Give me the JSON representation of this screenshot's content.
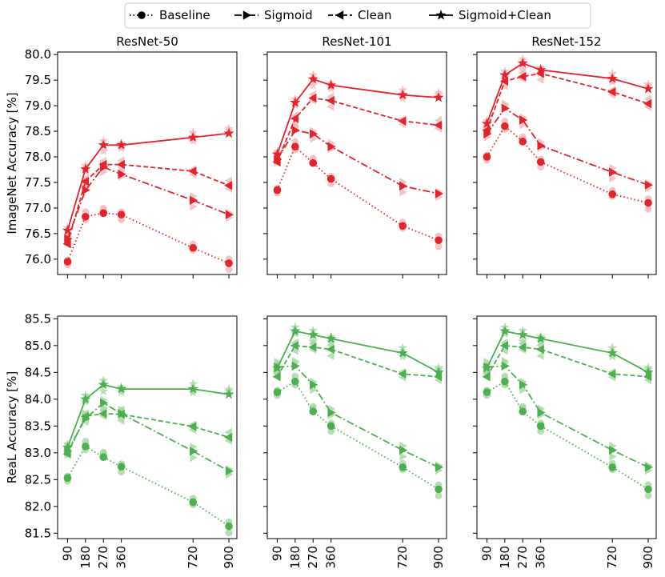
{
  "legend": {
    "placement": "top-center",
    "entries": [
      "Baseline",
      "Sigmoid",
      "Clean",
      "Sigmoid+Clean"
    ]
  },
  "colors": {
    "imagenet": "#e3242b",
    "imagenet_faint": "#f5b8bd",
    "real": "#4caf50",
    "real_faint": "#a9d7a6",
    "legend": "#000000"
  },
  "chart_data": [
    {
      "type": "line",
      "title": "ResNet-50",
      "ylabel": "ImageNet Accuracy [%]",
      "x": [
        90,
        180,
        270,
        360,
        720,
        900
      ],
      "ylim": [
        75.7,
        80.05
      ],
      "yticks": [
        "76.0",
        "76.5",
        "77.0",
        "77.5",
        "78.0",
        "78.5",
        "79.0",
        "79.5",
        "80.0"
      ],
      "series": [
        {
          "name": "Baseline",
          "values": [
            75.95,
            76.83,
            76.9,
            76.87,
            76.22,
            75.92
          ]
        },
        {
          "name": "Sigmoid",
          "values": [
            76.4,
            77.35,
            77.8,
            77.66,
            77.15,
            76.87
          ]
        },
        {
          "name": "Clean",
          "values": [
            76.3,
            77.52,
            77.85,
            77.85,
            77.72,
            77.44
          ]
        },
        {
          "name": "Sigmoid+Clean",
          "values": [
            76.56,
            77.76,
            78.23,
            78.23,
            78.38,
            78.46
          ]
        }
      ]
    },
    {
      "type": "line",
      "title": "ResNet-101",
      "x": [
        90,
        180,
        270,
        360,
        720,
        900
      ],
      "ylim": [
        75.7,
        80.05
      ],
      "series": [
        {
          "name": "Baseline",
          "values": [
            77.35,
            78.2,
            77.88,
            77.57,
            76.65,
            76.37
          ]
        },
        {
          "name": "Sigmoid",
          "values": [
            77.95,
            78.52,
            78.45,
            78.2,
            77.43,
            77.28
          ]
        },
        {
          "name": "Clean",
          "values": [
            77.9,
            78.75,
            79.15,
            79.1,
            78.7,
            78.62
          ]
        },
        {
          "name": "Sigmoid+Clean",
          "values": [
            78.05,
            79.06,
            79.52,
            79.4,
            79.21,
            79.16
          ]
        }
      ]
    },
    {
      "type": "line",
      "title": "ResNet-152",
      "x": [
        90,
        180,
        270,
        360,
        720,
        900
      ],
      "ylim": [
        75.7,
        80.05
      ],
      "series": [
        {
          "name": "Baseline",
          "values": [
            78.0,
            78.6,
            78.3,
            77.9,
            77.27,
            77.1
          ]
        },
        {
          "name": "Sigmoid",
          "values": [
            78.45,
            78.95,
            78.72,
            78.22,
            77.7,
            77.45
          ]
        },
        {
          "name": "Clean",
          "values": [
            78.52,
            79.48,
            79.57,
            79.63,
            79.27,
            79.04
          ]
        },
        {
          "name": "Sigmoid+Clean",
          "values": [
            78.65,
            79.6,
            79.83,
            79.7,
            79.53,
            79.33
          ]
        }
      ]
    },
    {
      "type": "line",
      "title": "",
      "ylabel": "ReaL Accuracy [%]",
      "x": [
        90,
        180,
        270,
        360,
        720,
        900
      ],
      "xticks": [
        "90",
        "180",
        "270",
        "360",
        "720",
        "900"
      ],
      "ylim": [
        81.4,
        85.55
      ],
      "yticks": [
        "81.5",
        "82.0",
        "82.5",
        "83.0",
        "83.5",
        "84.0",
        "84.5",
        "85.0",
        "85.5"
      ],
      "series": [
        {
          "name": "Baseline",
          "values": [
            82.53,
            83.12,
            82.92,
            82.74,
            82.08,
            81.63
          ]
        },
        {
          "name": "Sigmoid",
          "values": [
            83.03,
            83.64,
            83.93,
            83.73,
            83.03,
            82.66
          ]
        },
        {
          "name": "Clean",
          "values": [
            82.98,
            83.68,
            83.73,
            83.72,
            83.49,
            83.29
          ]
        },
        {
          "name": "Sigmoid+Clean",
          "values": [
            83.1,
            84.0,
            84.27,
            84.19,
            84.19,
            84.09
          ]
        }
      ]
    },
    {
      "type": "line",
      "title": "",
      "x": [
        90,
        180,
        270,
        360,
        720,
        900
      ],
      "xticks": [
        "90",
        "180",
        "270",
        "360",
        "720",
        "900"
      ],
      "ylim": [
        81.4,
        85.55
      ],
      "series": [
        {
          "name": "Baseline",
          "values": [
            84.13,
            84.33,
            83.77,
            83.5,
            82.73,
            82.32
          ]
        },
        {
          "name": "Sigmoid",
          "values": [
            84.6,
            84.62,
            84.27,
            83.75,
            83.05,
            82.73
          ]
        },
        {
          "name": "Clean",
          "values": [
            84.42,
            85.0,
            84.97,
            84.93,
            84.47,
            84.42
          ]
        },
        {
          "name": "Sigmoid+Clean",
          "values": [
            84.58,
            85.27,
            85.2,
            85.13,
            84.86,
            84.5
          ]
        }
      ]
    },
    {
      "type": "line",
      "title": "",
      "x": [
        90,
        180,
        270,
        360,
        720,
        900
      ],
      "xticks": [
        "90",
        "180",
        "270",
        "360",
        "720",
        "900"
      ],
      "ylim": [
        81.4,
        85.55
      ],
      "series": [
        {
          "name": "Baseline",
          "values": [
            84.13,
            84.33,
            83.77,
            83.5,
            82.73,
            82.32
          ]
        },
        {
          "name": "Sigmoid",
          "values": [
            84.6,
            84.62,
            84.27,
            83.75,
            83.05,
            82.73
          ]
        },
        {
          "name": "Clean",
          "values": [
            84.42,
            85.0,
            84.97,
            84.93,
            84.47,
            84.42
          ]
        },
        {
          "name": "Sigmoid+Clean",
          "values": [
            84.58,
            85.27,
            85.2,
            85.13,
            84.86,
            84.5
          ]
        }
      ]
    }
  ]
}
